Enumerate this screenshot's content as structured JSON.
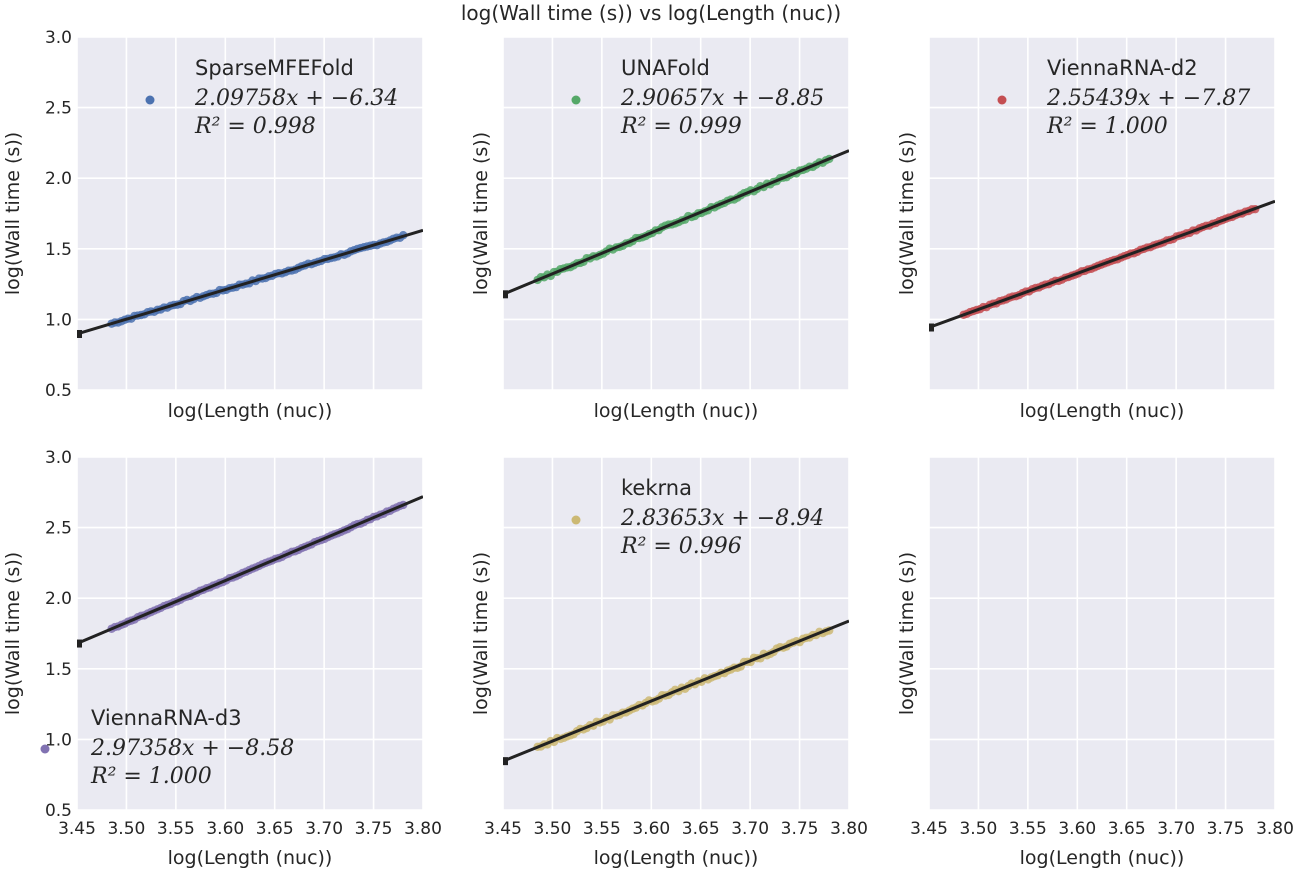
{
  "figure": {
    "title": "log(Wall time (s)) vs log(Length (nuc))",
    "background": "#ffffff",
    "panel_background": "#eaeaf2",
    "grid_color": "#ffffff",
    "fit_line_color": "#222222"
  },
  "chart_data": [
    {
      "type": "scatter",
      "panel": "top-left",
      "series": [
        {
          "name": "SparseMFEFold",
          "color": "#4c72b0",
          "slope": 2.09758,
          "intercept": -6.34,
          "r2": 0.998,
          "x_range": [
            3.485,
            3.78
          ],
          "noise": 0.008
        }
      ],
      "legend_label": "SparseMFEFold",
      "legend_eq": "2.09758x + −6.34",
      "legend_r2": "R² = 0.998",
      "legend_position": "top-center",
      "xlabel": "log(Length (nuc))",
      "ylabel": "log(Wall time (s))",
      "xlim": [
        3.45,
        3.8
      ],
      "ylim": [
        0.5,
        3.0
      ],
      "xticks": [
        "3.45",
        "3.50",
        "3.55",
        "3.60",
        "3.65",
        "3.70",
        "3.75",
        "3.80"
      ],
      "yticks": [
        "0.5",
        "1.0",
        "1.5",
        "2.0",
        "2.5",
        "3.0"
      ],
      "show_xticklabels": false,
      "show_yticklabels": true,
      "grid": true
    },
    {
      "type": "scatter",
      "panel": "top-middle",
      "series": [
        {
          "name": "UNAFold",
          "color": "#55a868",
          "slope": 2.90657,
          "intercept": -8.85,
          "r2": 0.999,
          "x_range": [
            3.485,
            3.78
          ],
          "noise": 0.01
        }
      ],
      "legend_label": "UNAFold",
      "legend_eq": "2.90657x + −8.85",
      "legend_r2": "R² = 0.999",
      "legend_position": "top-center",
      "xlabel": "log(Length (nuc))",
      "ylabel": "log(Wall time (s))",
      "xlim": [
        3.45,
        3.8
      ],
      "ylim": [
        0.5,
        3.0
      ],
      "xticks": [
        "3.45",
        "3.50",
        "3.55",
        "3.60",
        "3.65",
        "3.70",
        "3.75",
        "3.80"
      ],
      "yticks": [
        "0.5",
        "1.0",
        "1.5",
        "2.0",
        "2.5",
        "3.0"
      ],
      "show_xticklabels": false,
      "show_yticklabels": false,
      "grid": true
    },
    {
      "type": "scatter",
      "panel": "top-right",
      "series": [
        {
          "name": "ViennaRNA-d2",
          "color": "#c44e52",
          "slope": 2.55439,
          "intercept": -7.87,
          "r2": 1.0,
          "x_range": [
            3.485,
            3.78
          ],
          "noise": 0.005
        }
      ],
      "legend_label": "ViennaRNA-d2",
      "legend_eq": "2.55439x + −7.87",
      "legend_r2": "R² = 1.000",
      "legend_position": "top-center",
      "xlabel": "log(Length (nuc))",
      "ylabel": "log(Wall time (s))",
      "xlim": [
        3.45,
        3.8
      ],
      "ylim": [
        0.5,
        3.0
      ],
      "xticks": [
        "3.45",
        "3.50",
        "3.55",
        "3.60",
        "3.65",
        "3.70",
        "3.75",
        "3.80"
      ],
      "yticks": [
        "0.5",
        "1.0",
        "1.5",
        "2.0",
        "2.5",
        "3.0"
      ],
      "show_xticklabels": false,
      "show_yticklabels": false,
      "grid": true
    },
    {
      "type": "scatter",
      "panel": "bottom-left",
      "series": [
        {
          "name": "ViennaRNA-d3",
          "color": "#8172b2",
          "slope": 2.97358,
          "intercept": -8.58,
          "r2": 1.0,
          "x_range": [
            3.485,
            3.78
          ],
          "noise": 0.004
        }
      ],
      "legend_label": "ViennaRNA-d3",
      "legend_eq": "2.97358x + −8.58",
      "legend_r2": "R² = 1.000",
      "legend_position": "bottom-left",
      "xlabel": "log(Length (nuc))",
      "ylabel": "log(Wall time (s))",
      "xlim": [
        3.45,
        3.8
      ],
      "ylim": [
        0.5,
        3.0
      ],
      "xticks": [
        "3.45",
        "3.50",
        "3.55",
        "3.60",
        "3.65",
        "3.70",
        "3.75",
        "3.80"
      ],
      "yticks": [
        "0.5",
        "1.0",
        "1.5",
        "2.0",
        "2.5",
        "3.0"
      ],
      "show_xticklabels": true,
      "show_yticklabels": true,
      "grid": true
    },
    {
      "type": "scatter",
      "panel": "bottom-middle",
      "series": [
        {
          "name": "kekrna",
          "color": "#ccb974",
          "slope": 2.83653,
          "intercept": -8.94,
          "r2": 0.996,
          "x_range": [
            3.485,
            3.78
          ],
          "noise": 0.012
        }
      ],
      "legend_label": "kekrna",
      "legend_eq": "2.83653x + −8.94",
      "legend_r2": "R² = 0.996",
      "legend_position": "top-center",
      "xlabel": "log(Length (nuc))",
      "ylabel": "log(Wall time (s))",
      "xlim": [
        3.45,
        3.8
      ],
      "ylim": [
        0.5,
        3.0
      ],
      "xticks": [
        "3.45",
        "3.50",
        "3.55",
        "3.60",
        "3.65",
        "3.70",
        "3.75",
        "3.80"
      ],
      "yticks": [
        "0.5",
        "1.0",
        "1.5",
        "2.0",
        "2.5",
        "3.0"
      ],
      "show_xticklabels": true,
      "show_yticklabels": false,
      "grid": true
    },
    {
      "type": "scatter",
      "panel": "bottom-right",
      "series": [],
      "legend_label": "",
      "legend_eq": "",
      "legend_r2": "",
      "legend_position": "",
      "xlabel": "log(Length (nuc))",
      "ylabel": "log(Wall time (s))",
      "xlim": [
        3.45,
        3.8
      ],
      "ylim": [
        0.5,
        3.0
      ],
      "xticks": [
        "3.45",
        "3.50",
        "3.55",
        "3.60",
        "3.65",
        "3.70",
        "3.75",
        "3.80"
      ],
      "yticks": [
        "0.5",
        "1.0",
        "1.5",
        "2.0",
        "2.5",
        "3.0"
      ],
      "show_xticklabels": true,
      "show_yticklabels": false,
      "grid": true
    }
  ]
}
